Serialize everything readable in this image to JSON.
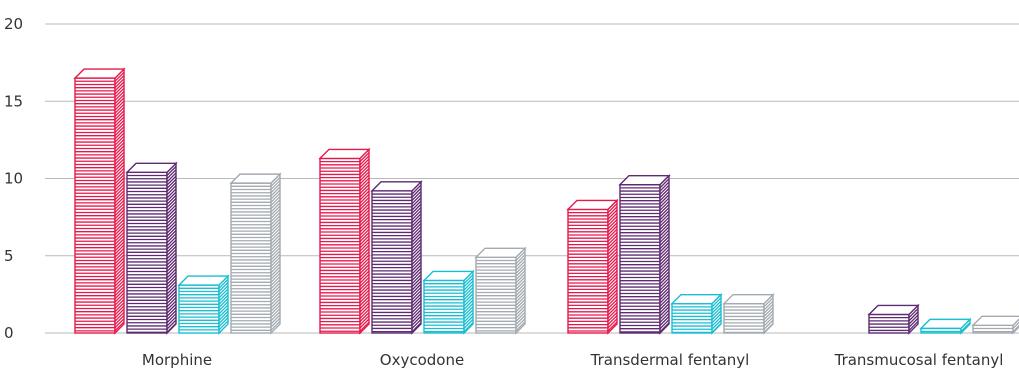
{
  "chart_data": {
    "type": "bar",
    "title": "",
    "xlabel": "",
    "ylabel": "",
    "ylim": [
      0,
      20
    ],
    "yticks": [
      0,
      5,
      10,
      15,
      20
    ],
    "grid": true,
    "legend": "none",
    "categories": [
      "Morphine",
      "Oxycodone",
      "Transdermal fentanyl",
      "Transmucosal fentanyl"
    ],
    "series": [
      {
        "color": "#e6194b",
        "values": [
          16.5,
          11.3,
          8.0,
          null
        ]
      },
      {
        "color": "#5e2a70",
        "values": [
          10.4,
          9.2,
          9.6,
          1.2
        ]
      },
      {
        "color": "#19bed2",
        "values": [
          3.1,
          3.4,
          1.9,
          0.3
        ]
      },
      {
        "color": "#a3aab0",
        "values": [
          9.7,
          4.9,
          1.9,
          0.5
        ]
      }
    ]
  }
}
